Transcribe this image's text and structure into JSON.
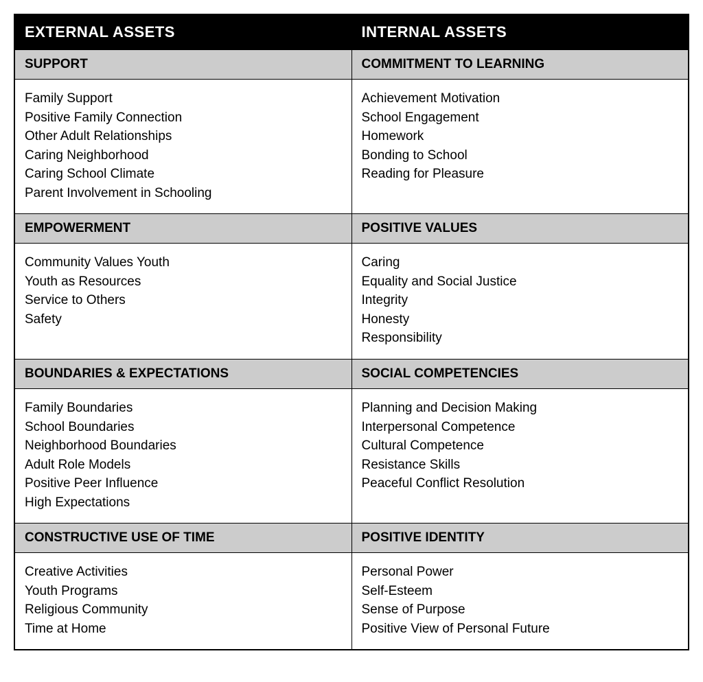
{
  "table": {
    "type": "table",
    "columns": [
      "EXTERNAL ASSETS",
      "INTERNAL ASSETS"
    ],
    "colors": {
      "main_header_bg": "#000000",
      "main_header_text": "#ffffff",
      "sub_header_bg": "#cccccc",
      "sub_header_text": "#000000",
      "cell_bg": "#ffffff",
      "cell_text": "#000000",
      "border": "#000000"
    },
    "fontsizes": {
      "main_header": 22,
      "sub_header": 19,
      "item": 19
    },
    "sections": [
      {
        "left_header": "SUPPORT",
        "right_header": "COMMITMENT TO LEARNING",
        "left_items": [
          "Family Support",
          "Positive Family Connection",
          "Other Adult Relationships",
          "Caring Neighborhood",
          "Caring School Climate",
          "Parent Involvement in Schooling"
        ],
        "right_items": [
          "Achievement Motivation",
          "School Engagement",
          "Homework",
          "Bonding to School",
          "Reading for Pleasure"
        ]
      },
      {
        "left_header": "EMPOWERMENT",
        "right_header": "POSITIVE VALUES",
        "left_items": [
          "Community Values Youth",
          "Youth as Resources",
          "Service to Others",
          "Safety"
        ],
        "right_items": [
          "Caring",
          "Equality and Social Justice",
          "Integrity",
          "Honesty",
          "Responsibility"
        ]
      },
      {
        "left_header": "BOUNDARIES & EXPECTATIONS",
        "right_header": "SOCIAL COMPETENCIES",
        "left_items": [
          "Family Boundaries",
          "School Boundaries",
          "Neighborhood Boundaries",
          "Adult Role Models",
          "Positive Peer Influence",
          "High Expectations"
        ],
        "right_items": [
          "Planning and Decision Making",
          "Interpersonal Competence",
          "Cultural Competence",
          "Resistance Skills",
          "Peaceful Conflict Resolution"
        ]
      },
      {
        "left_header": "CONSTRUCTIVE USE OF TIME",
        "right_header": "POSITIVE IDENTITY",
        "left_items": [
          "Creative Activities",
          "Youth Programs",
          "Religious Community",
          "Time at Home"
        ],
        "right_items": [
          "Personal Power",
          "Self-Esteem",
          "Sense of Purpose",
          "Positive View of Personal Future"
        ]
      }
    ]
  }
}
